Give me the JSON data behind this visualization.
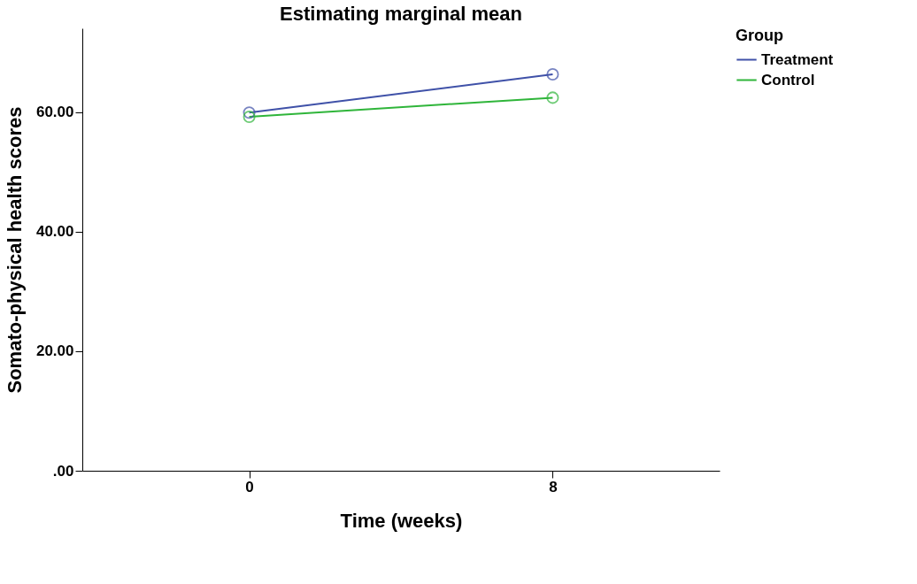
{
  "chart_data": {
    "type": "line",
    "title": "Estimating marginal mean",
    "xlabel": "Time (weeks)",
    "ylabel": "Somato-physical health scores",
    "legend_title": "Group",
    "categories": [
      "0",
      "8"
    ],
    "series": [
      {
        "name": "Treatment",
        "color": "#3f51a8",
        "values": [
          59.9,
          66.3
        ]
      },
      {
        "name": "Control",
        "color": "#2fb53a",
        "values": [
          59.2,
          62.4
        ]
      }
    ],
    "ylim": [
      0,
      74
    ],
    "yticks": [
      {
        "value": 0,
        "label": ".00"
      },
      {
        "value": 20,
        "label": "20.00"
      },
      {
        "value": 40,
        "label": "40.00"
      },
      {
        "value": 60,
        "label": "60.00"
      }
    ],
    "marker": "circle",
    "line_style": "solid",
    "legend": "top right",
    "grid": false
  }
}
